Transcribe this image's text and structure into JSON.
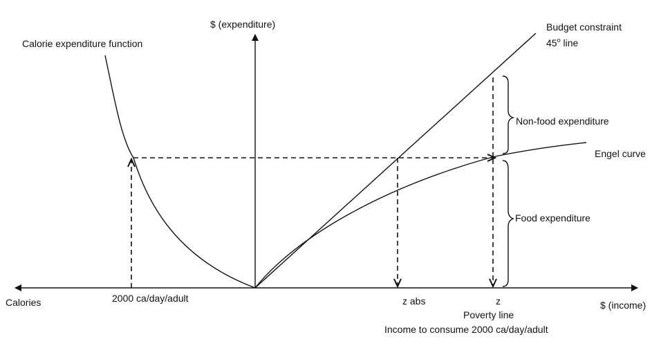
{
  "diagram": {
    "labels": {
      "y_axis": "$ (expenditure)",
      "x_axis_right": "$ (income)",
      "x_axis_left": "Calories",
      "calorie_function": "Calorie expenditure function",
      "budget_constraint": "Budget constraint",
      "line_45": "45",
      "line_45_suffix": " line",
      "non_food": "Non-food expenditure",
      "engel_curve": "Engel curve",
      "food": "Food expenditure",
      "calorie_requirement": "2000 ca/day/adult",
      "z_abs": "z abs",
      "z": "z",
      "poverty_line": "Poverty line",
      "income_note": "Income to consume 2000 ca/day/adult"
    }
  }
}
